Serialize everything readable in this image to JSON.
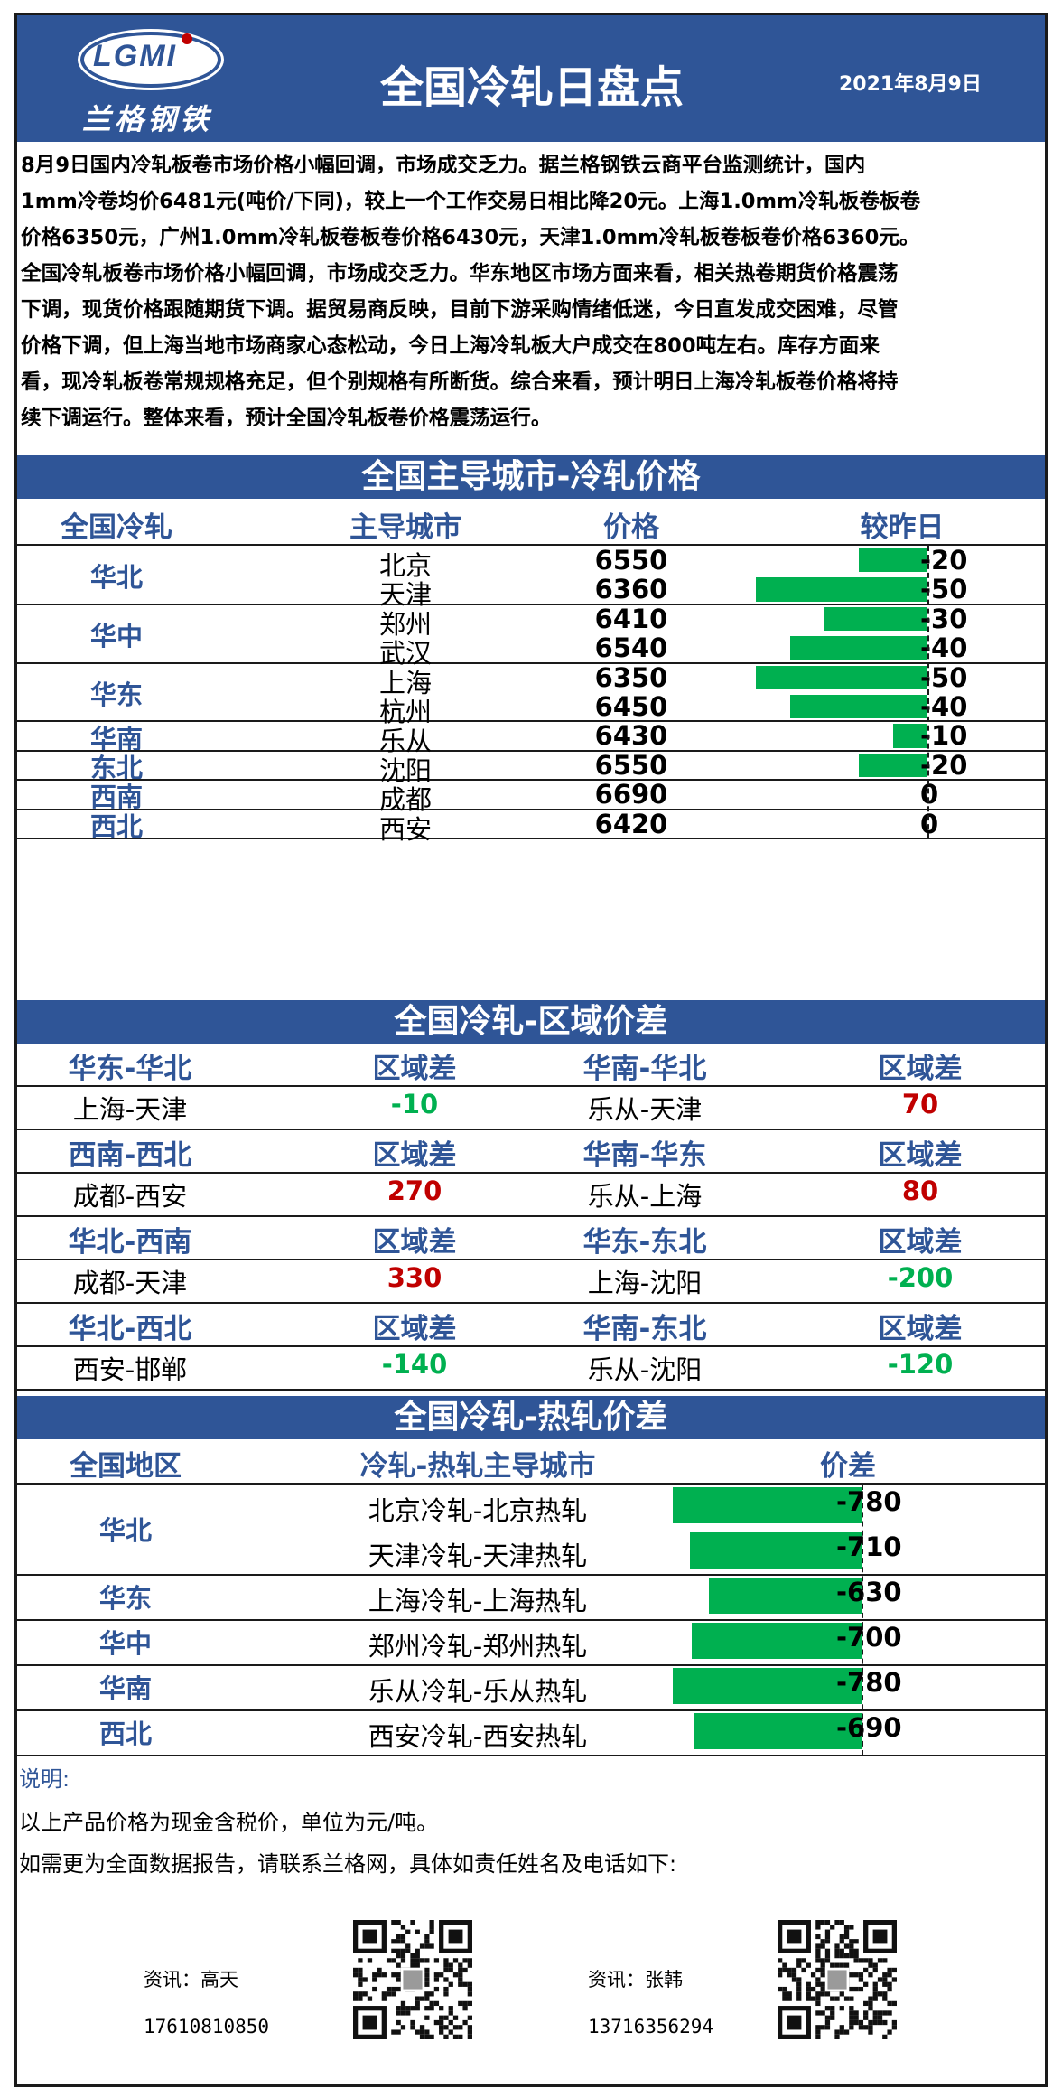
{
  "header": {
    "logo_text": "LGMI",
    "logo_cn": "兰格钢铁",
    "title": "全国冷轧日盘点",
    "date": "2021年8月9日"
  },
  "summary_lines": [
    "8月9日国内冷轧板卷市场价格小幅回调，市场成交乏力。据兰格钢铁云商平台监测统计，国内",
    "1mm冷卷均价6481元(吨价/下同)，较上一个工作交易日相比降20元。上海1.0mm冷轧板卷板卷",
    "价格6350元，广州1.0mm冷轧板卷板卷价格6430元，天津1.0mm冷轧板卷板卷价格6360元。",
    "全国冷轧板卷市场价格小幅回调，市场成交乏力。华东地区市场方面来看，相关热卷期货价格震荡",
    "下调，现货价格跟随期货下调。据贸易商反映，目前下游采购情绪低迷，今日直发成交困难，尽管",
    "价格下调，但上海当地市场商家心态松动，今日上海冷轧板大户成交在800吨左右。库存方面来",
    "看，现冷轧板卷常规规格充足，但个别规格有所断货。综合来看，预计明日上海冷轧板卷价格将持",
    "续下调运行。整体来看，预计全国冷轧板卷价格震荡运行。"
  ],
  "price_section": {
    "title": "全国主导城市-冷轧价格",
    "headers": [
      "全国冷轧",
      "主导城市",
      "价格",
      "较昨日"
    ],
    "regions": [
      "华北",
      "华中",
      "华东",
      "华南",
      "东北",
      "西南",
      "西北"
    ],
    "rows": [
      {
        "city": "北京",
        "price": "6550",
        "change": -20,
        "change_label": "-20"
      },
      {
        "city": "天津",
        "price": "6360",
        "change": -50,
        "change_label": "-50"
      },
      {
        "city": "郑州",
        "price": "6410",
        "change": -30,
        "change_label": "-30"
      },
      {
        "city": "武汉",
        "price": "6540",
        "change": -40,
        "change_label": "-40"
      },
      {
        "city": "上海",
        "price": "6350",
        "change": -50,
        "change_label": "-50"
      },
      {
        "city": "杭州",
        "price": "6450",
        "change": -40,
        "change_label": "-40"
      },
      {
        "city": "乐从",
        "price": "6430",
        "change": -10,
        "change_label": "-10"
      },
      {
        "city": "沈阳",
        "price": "6550",
        "change": -20,
        "change_label": "-20"
      },
      {
        "city": "成都",
        "price": "6690",
        "change": 0,
        "change_label": "0"
      },
      {
        "city": "西安",
        "price": "6420",
        "change": 0,
        "change_label": "0"
      }
    ]
  },
  "diff_section": {
    "title": "全国冷轧-区域价差",
    "diff_label": "区域差",
    "blocks": [
      {
        "left_head": "华东-华北",
        "left_pair": "上海-天津",
        "left_value": "-10",
        "right_head": "华南-华北",
        "right_pair": "乐从-天津",
        "right_value": "70"
      },
      {
        "left_head": "西南-西北",
        "left_pair": "成都-西安",
        "left_value": "270",
        "right_head": "华南-华东",
        "right_pair": "乐从-上海",
        "right_value": "80"
      },
      {
        "left_head": "华北-西南",
        "left_pair": "成都-天津",
        "left_value": "330",
        "right_head": "华东-东北",
        "right_pair": "上海-沈阳",
        "right_value": "-200"
      },
      {
        "left_head": "华北-西北",
        "left_pair": "西安-邯郸",
        "left_value": "-140",
        "right_head": "华南-东北",
        "right_pair": "乐从-沈阳",
        "right_value": "-120"
      }
    ]
  },
  "hot_section": {
    "title": "全国冷轧-热轧价差",
    "headers": [
      "全国地区",
      "冷轧-热轧主导城市",
      "价差"
    ],
    "regions": [
      "华北",
      "华东",
      "华中",
      "华南",
      "西北"
    ],
    "rows": [
      {
        "pair": "北京冷轧-北京热轧",
        "value": -780,
        "label": "-780"
      },
      {
        "pair": "天津冷轧-天津热轧",
        "value": -710,
        "label": "-710"
      },
      {
        "pair": "上海冷轧-上海热轧",
        "value": -630,
        "label": "-630"
      },
      {
        "pair": "郑州冷轧-郑州热轧",
        "value": -700,
        "label": "-700"
      },
      {
        "pair": "乐从冷轧-乐从热轧",
        "value": -780,
        "label": "-780"
      },
      {
        "pair": "西安冷轧-西安热轧",
        "value": -690,
        "label": "-690"
      }
    ]
  },
  "notes": {
    "label": "说明:",
    "line1": "以上产品价格为现金含税价，单位为元/吨。",
    "line2": "如需更为全面数据报告，请联系兰格网，具体如责任姓名及电话如下:"
  },
  "contacts": [
    {
      "name": "资讯：高天",
      "phone": "17610810850"
    },
    {
      "name": "资讯：张韩",
      "phone": "13716356294"
    }
  ],
  "colors": {
    "header_blue": "#2f5597",
    "bar_green": "#00b050",
    "neg_green": "#00b050",
    "pos_red": "#c00000"
  }
}
